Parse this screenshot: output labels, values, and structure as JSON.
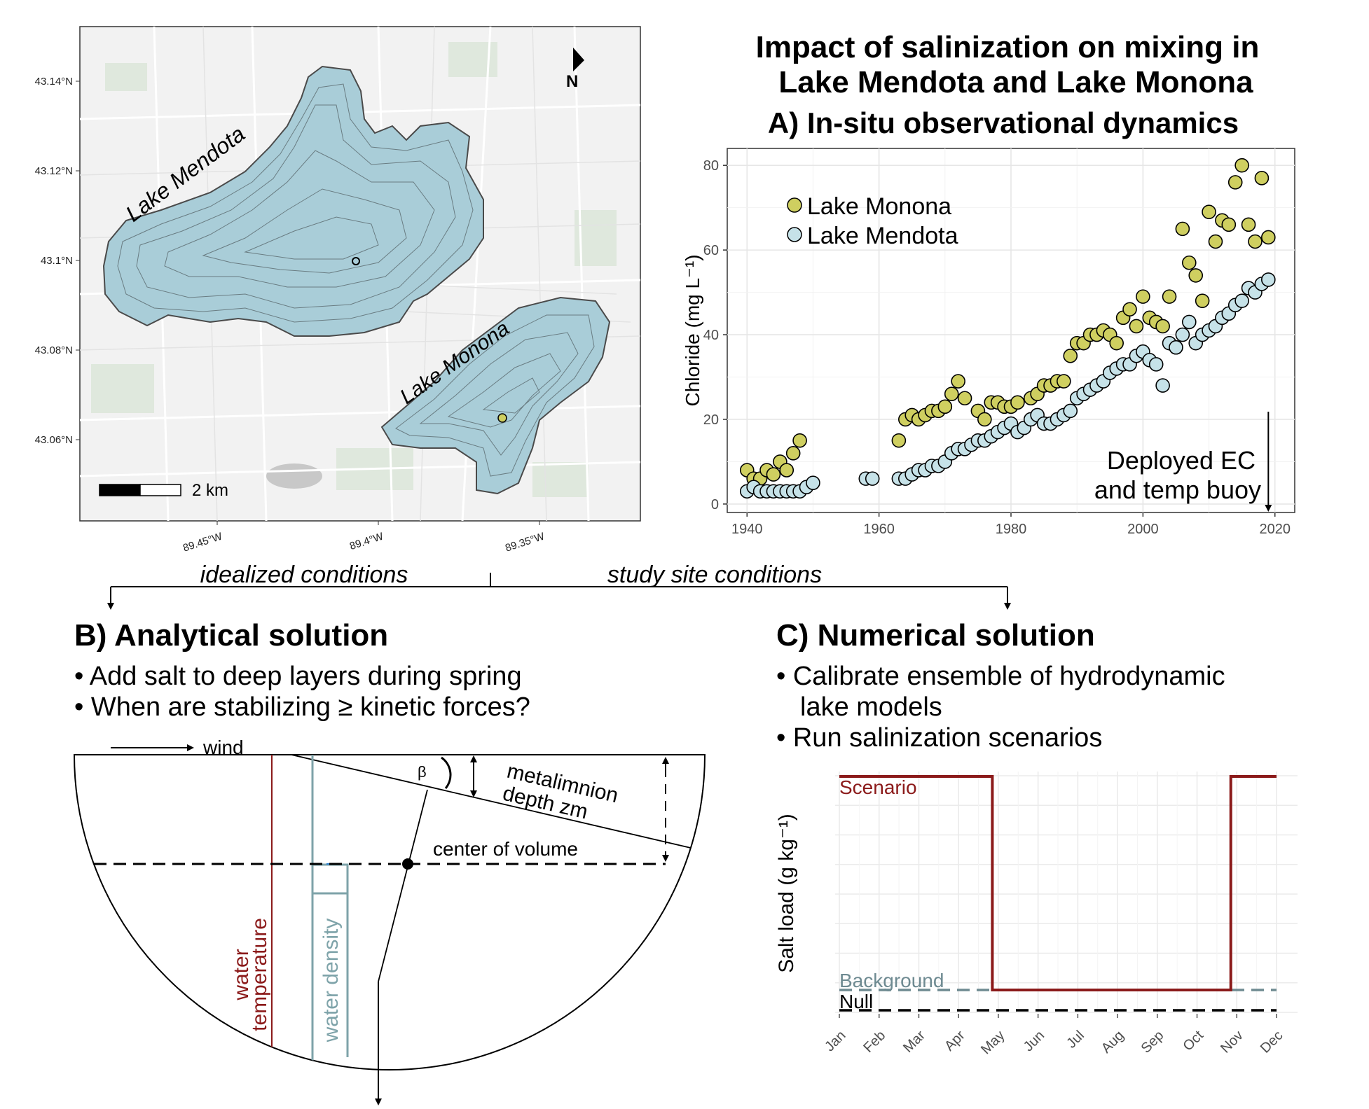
{
  "header": {
    "title_line1": "Impact of salinization on mixing in",
    "title_line2": "Lake Mendota and Lake Monona",
    "panel_a_title": "A) In-situ observational dynamics"
  },
  "map": {
    "lake_mendota": "Lake Mendota",
    "lake_monona": "Lake Monona",
    "scale_label": "2 km",
    "north_label": "N",
    "lat_ticks": [
      "43.14°N",
      "43.12°N",
      "43.1°N",
      "43.08°N",
      "43.06°N"
    ],
    "lon_ticks": [
      "89.45°W",
      "89.4°W",
      "89.35°W"
    ]
  },
  "connector": {
    "left_label": "idealized conditions",
    "right_label": "study site conditions"
  },
  "panel_b": {
    "title": "B) Analytical solution",
    "bullets": [
      "• Add salt to deep layers during spring",
      "• When are stabilizing ≥ kinetic forces?"
    ],
    "wind_label": "wind",
    "beta_label": "β",
    "metalimnion_line1": "metalimnion",
    "metalimnion_line2": "depth zm",
    "center_label": "center of volume",
    "temp_line1": "water",
    "temp_line2": "temperature",
    "density_label": "water density",
    "colors": {
      "temperature": "#8b1a1a",
      "density": "#7ea3a9"
    }
  },
  "panel_c": {
    "title": "C) Numerical solution",
    "bullets": [
      "• Calibrate ensemble of hydrodynamic",
      "lake models",
      "• Run salinization scenarios"
    ],
    "ylabel": "Salt load (g kg⁻¹)",
    "months": [
      "Jan",
      "Feb",
      "Mar",
      "Apr",
      "May",
      "Jun",
      "Jul",
      "Aug",
      "Sep",
      "Oct",
      "Nov",
      "Dec"
    ],
    "series_labels": {
      "scenario": "Scenario",
      "background": "Background",
      "null": "Null"
    },
    "colors": {
      "scenario": "#8b1a1a",
      "background": "#6e8a91",
      "null": "#000000"
    }
  },
  "chart_data": {
    "type": "scatter",
    "title": "A) In-situ observational dynamics",
    "xlabel": "",
    "ylabel": "Chloride (mg L⁻¹)",
    "xlim": [
      1937,
      2023
    ],
    "ylim": [
      -2,
      84
    ],
    "xticks": [
      1940,
      1960,
      1980,
      2000,
      2020
    ],
    "yticks": [
      0,
      20,
      40,
      60,
      80
    ],
    "annotation": [
      "Deployed EC",
      "and temp buoy"
    ],
    "annotation_x": 2019,
    "series": [
      {
        "name": "Lake Monona",
        "color": "#cfcf60",
        "x": [
          1940,
          1941,
          1942,
          1943,
          1944,
          1945,
          1946,
          1947,
          1948,
          1963,
          1964,
          1965,
          1966,
          1967,
          1968,
          1969,
          1970,
          1971,
          1972,
          1973,
          1975,
          1976,
          1977,
          1978,
          1979,
          1980,
          1981,
          1983,
          1984,
          1985,
          1986,
          1987,
          1988,
          1989,
          1990,
          1991,
          1992,
          1993,
          1994,
          1995,
          1996,
          1997,
          1998,
          1999,
          2000,
          2001,
          2002,
          2003,
          2004,
          2005,
          2006,
          2007,
          2008,
          2009,
          2010,
          2011,
          2012,
          2013,
          2014,
          2015,
          2016,
          2017,
          2018
        ],
        "y": [
          8,
          6,
          6,
          8,
          7,
          10,
          8,
          12,
          15,
          15,
          20,
          21,
          20,
          21,
          22,
          22,
          23,
          26,
          29,
          25,
          22,
          20,
          24,
          24,
          23,
          23,
          24,
          25,
          26,
          28,
          28,
          29,
          29,
          35,
          38,
          38,
          40,
          40,
          41,
          40,
          38,
          44,
          46,
          42,
          49,
          44,
          43,
          42,
          49,
          37,
          65,
          57,
          54,
          48,
          69,
          62,
          67,
          66,
          76,
          80,
          66,
          62,
          77
        ],
        "y_last": 63
      },
      {
        "name": "Lake Mendota",
        "color": "#c6e2e8",
        "x": [
          1940,
          1941,
          1942,
          1943,
          1944,
          1945,
          1946,
          1947,
          1948,
          1949,
          1950,
          1958,
          1959,
          1963,
          1964,
          1965,
          1966,
          1967,
          1968,
          1969,
          1970,
          1971,
          1972,
          1973,
          1974,
          1975,
          1976,
          1977,
          1978,
          1979,
          1980,
          1981,
          1982,
          1983,
          1984,
          1985,
          1986,
          1987,
          1988,
          1989,
          1990,
          1991,
          1992,
          1993,
          1994,
          1995,
          1996,
          1997,
          1998,
          1999,
          2000,
          2001,
          2002,
          2003,
          2004,
          2005,
          2006,
          2007,
          2008,
          2009,
          2010,
          2011,
          2012,
          2013,
          2014,
          2015,
          2016,
          2017,
          2018,
          2019
        ],
        "y": [
          3,
          4,
          3,
          3,
          3,
          3,
          3,
          3,
          3,
          4,
          5,
          6,
          6,
          6,
          6,
          7,
          8,
          8,
          9,
          9,
          10,
          12,
          13,
          13,
          14,
          15,
          15,
          16,
          17,
          18,
          19,
          17,
          18,
          20,
          21,
          19,
          19,
          20,
          21,
          22,
          25,
          26,
          27,
          28,
          29,
          31,
          32,
          33,
          33,
          35,
          36,
          34,
          33,
          28,
          38,
          37,
          40,
          43,
          38,
          40,
          41,
          42,
          44,
          45,
          47,
          48,
          51,
          50,
          52,
          53
        ]
      }
    ]
  }
}
